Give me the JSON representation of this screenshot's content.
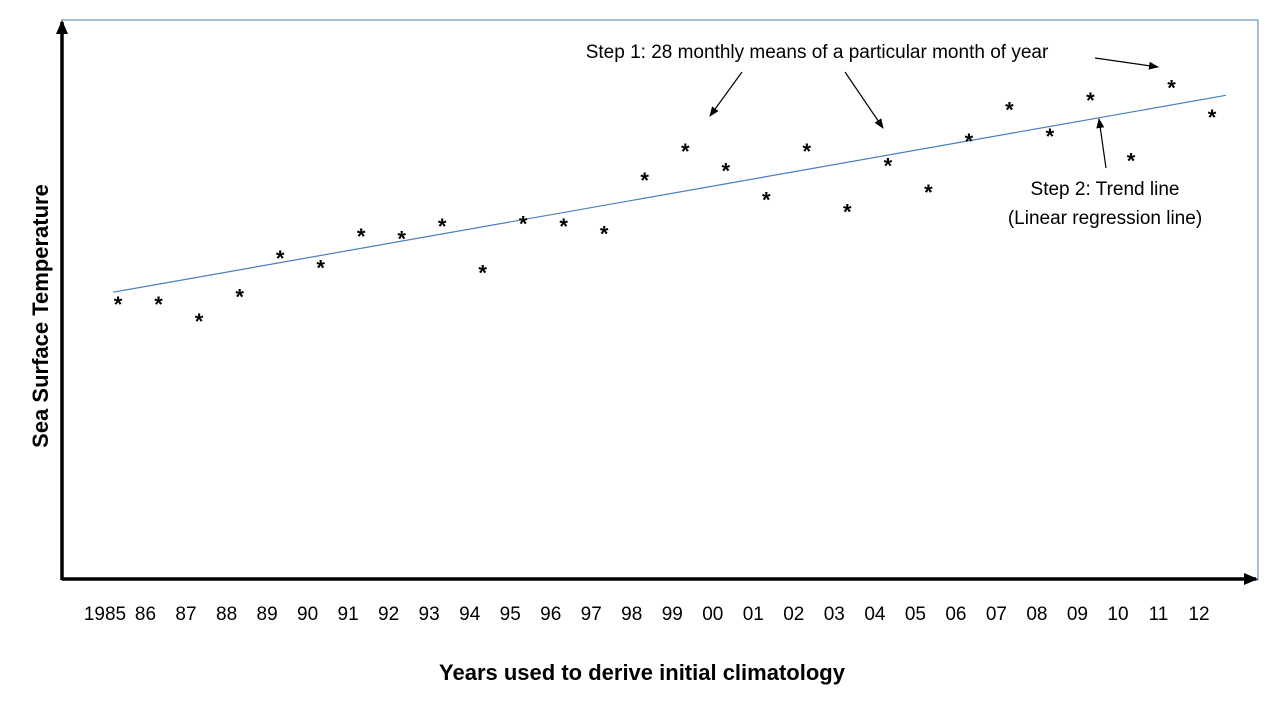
{
  "chart_data": {
    "type": "scatter",
    "title": "",
    "xlabel": "Years used to derive initial climatology",
    "ylabel": "Sea Surface Temperature",
    "categories": [
      "1985",
      "86",
      "87",
      "88",
      "89",
      "90",
      "91",
      "92",
      "93",
      "94",
      "95",
      "96",
      "97",
      "98",
      "99",
      "00",
      "01",
      "02",
      "03",
      "04",
      "05",
      "06",
      "07",
      "08",
      "09",
      "10",
      "11",
      "12"
    ],
    "series": [
      {
        "marker": "*",
        "values": [
          57,
          57,
          53.5,
          58.5,
          66.5,
          64.5,
          71,
          70.5,
          73,
          63.5,
          73.5,
          73,
          71.5,
          82.5,
          88.5,
          84.5,
          78.5,
          88.5,
          76,
          85.5,
          80,
          90.5,
          97,
          91.5,
          99,
          86.5,
          101.5,
          95.5
        ]
      }
    ],
    "trend_line": {
      "start": 59,
      "end": 99.5,
      "color": "#4a7ebb"
    },
    "ylim": [
      0,
      115
    ],
    "grid": false,
    "annotations": {
      "step1": "Step 1: 28 monthly means of a particular month of year",
      "step2_line1": "Step 2: Trend line",
      "step2_line2": "(Linear regression line)"
    },
    "colors": {
      "frame": "#4a7ebb",
      "axes": "#000000",
      "markers": "#000000"
    }
  }
}
